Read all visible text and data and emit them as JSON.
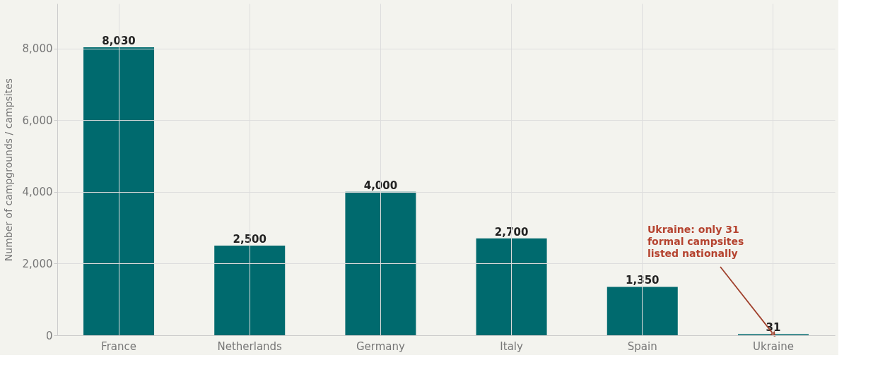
{
  "chart_data": {
    "type": "bar",
    "categories": [
      "France",
      "Netherlands",
      "Germany",
      "Italy",
      "Spain",
      "Ukraine"
    ],
    "values": [
      8030,
      2500,
      4000,
      2700,
      1350,
      31
    ],
    "color": "#006a6e",
    "ylabel": "Number of campgrounds / campsites",
    "value_labels": [
      "8,030",
      "2,500",
      "4,000",
      "2,700",
      "1,350",
      "31"
    ],
    "ylim": [
      0,
      9250
    ],
    "yticks": [
      0,
      {
        "value": 2000,
        "label": "2,000"
      },
      {
        "value": 4000,
        "label": "4,000"
      },
      {
        "value": 6000,
        "label": "6,000"
      },
      {
        "value": 8000,
        "label": "8,000"
      }
    ],
    "grid": true,
    "annotations": [
      {
        "text": "Ukraine: only 31\nformal campsites\nlisted nationally",
        "x": "Ukraine",
        "y": 31
      }
    ]
  }
}
